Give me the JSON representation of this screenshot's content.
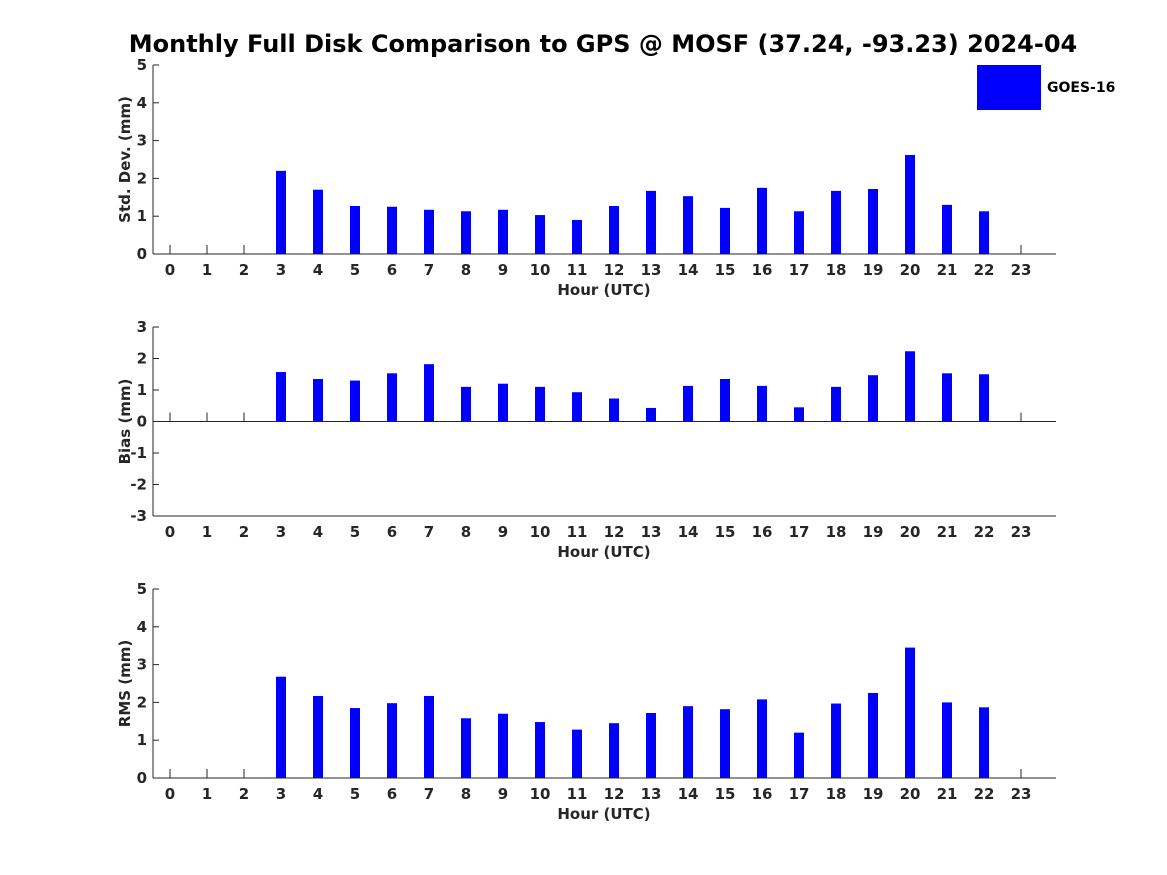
{
  "title": "Monthly Full Disk Comparison to GPS @ MOSF (37.24, -93.23) 2024-04",
  "legend": {
    "label": "GOES-16",
    "color": "#0000ff",
    "placement": "top-right"
  },
  "chart_data": [
    {
      "type": "bar",
      "name": "std-dev",
      "title": "Monthly Full Disk Comparison to GPS @ MOSF (37.24, -93.23) 2024-04",
      "xlabel": "Hour (UTC)",
      "ylabel": "Std. Dev. (mm)",
      "ylim": [
        0,
        5
      ],
      "yticks": [
        0,
        1,
        2,
        3,
        4,
        5
      ],
      "categories": [
        0,
        1,
        2,
        3,
        4,
        5,
        6,
        7,
        8,
        9,
        10,
        11,
        12,
        13,
        14,
        15,
        16,
        17,
        18,
        19,
        20,
        21,
        22,
        23
      ],
      "series": [
        {
          "name": "GOES-16",
          "values": [
            null,
            null,
            null,
            2.2,
            1.7,
            1.27,
            1.25,
            1.17,
            1.13,
            1.17,
            1.03,
            0.9,
            1.27,
            1.67,
            1.53,
            1.22,
            1.75,
            1.13,
            1.67,
            1.72,
            2.62,
            1.3,
            1.13,
            null
          ]
        }
      ]
    },
    {
      "type": "bar",
      "name": "bias",
      "xlabel": "Hour (UTC)",
      "ylabel": "Bias (mm)",
      "ylim": [
        -3,
        3
      ],
      "yticks": [
        -3,
        -2,
        -1,
        0,
        1,
        2,
        3
      ],
      "categories": [
        0,
        1,
        2,
        3,
        4,
        5,
        6,
        7,
        8,
        9,
        10,
        11,
        12,
        13,
        14,
        15,
        16,
        17,
        18,
        19,
        20,
        21,
        22,
        23
      ],
      "series": [
        {
          "name": "GOES-16",
          "values": [
            null,
            null,
            null,
            1.57,
            1.35,
            1.3,
            1.53,
            1.82,
            1.1,
            1.2,
            1.1,
            0.93,
            0.73,
            0.43,
            1.13,
            1.35,
            1.13,
            0.45,
            1.1,
            1.47,
            2.23,
            1.53,
            1.5,
            null
          ]
        }
      ]
    },
    {
      "type": "bar",
      "name": "rms",
      "xlabel": "Hour (UTC)",
      "ylabel": "RMS (mm)",
      "ylim": [
        0,
        5
      ],
      "yticks": [
        0,
        1,
        2,
        3,
        4,
        5
      ],
      "categories": [
        0,
        1,
        2,
        3,
        4,
        5,
        6,
        7,
        8,
        9,
        10,
        11,
        12,
        13,
        14,
        15,
        16,
        17,
        18,
        19,
        20,
        21,
        22,
        23
      ],
      "series": [
        {
          "name": "GOES-16",
          "values": [
            null,
            null,
            null,
            2.68,
            2.17,
            1.85,
            1.98,
            2.17,
            1.58,
            1.7,
            1.48,
            1.28,
            1.45,
            1.72,
            1.9,
            1.82,
            2.08,
            1.2,
            1.97,
            2.25,
            3.45,
            2.0,
            1.87,
            null
          ]
        }
      ]
    }
  ]
}
